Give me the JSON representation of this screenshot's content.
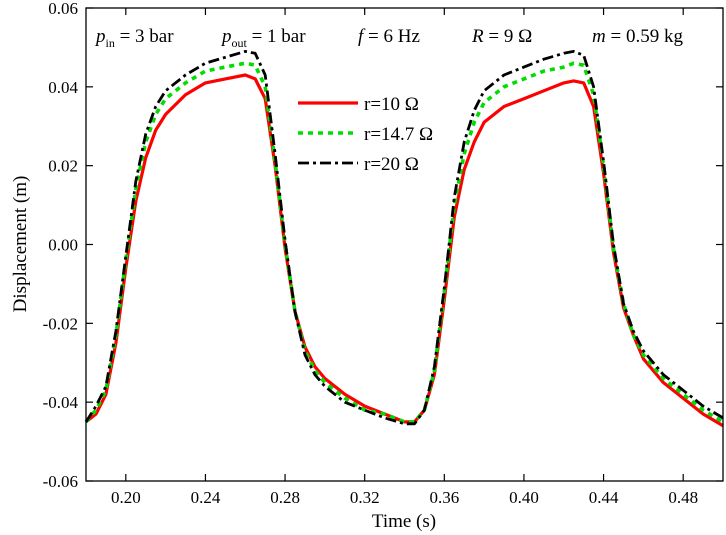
{
  "chart_data": {
    "type": "line",
    "xlabel": "Time (s)",
    "ylabel": "Displacement (m)",
    "xlim": [
      0.18,
      0.5
    ],
    "ylim": [
      -0.06,
      0.06
    ],
    "xticks": [
      0.2,
      0.24,
      0.28,
      0.32,
      0.36,
      0.4,
      0.44,
      0.48
    ],
    "yticks": [
      -0.06,
      -0.04,
      -0.02,
      0.0,
      0.02,
      0.04,
      0.06
    ],
    "xtick_labels": [
      "0.20",
      "0.24",
      "0.28",
      "0.32",
      "0.36",
      "0.40",
      "0.44",
      "0.48"
    ],
    "ytick_labels": [
      "-0.06",
      "-0.04",
      "-0.02",
      "0.00",
      "0.02",
      "0.04",
      "0.06"
    ],
    "grid": false,
    "legend_position": "upper-center",
    "annotations": [
      {
        "name": "p_in",
        "symbol": "p",
        "subscript": "in",
        "text": " = 3 bar"
      },
      {
        "name": "p_out",
        "symbol": "p",
        "subscript": "out",
        "text": " = 1 bar"
      },
      {
        "name": "frequency",
        "symbol": "f",
        "subscript": "",
        "text": " = 6 Hz"
      },
      {
        "name": "resistance",
        "symbol": "R",
        "subscript": "",
        "text": " = 9 Ω"
      },
      {
        "name": "mass",
        "symbol": "m",
        "subscript": "",
        "text": " = 0.59 kg"
      }
    ],
    "series": [
      {
        "name": "r=10 Ω",
        "color": "#ff0000",
        "style": "solid",
        "x": [
          0.18,
          0.185,
          0.19,
          0.195,
          0.2,
          0.205,
          0.21,
          0.215,
          0.22,
          0.23,
          0.24,
          0.25,
          0.26,
          0.265,
          0.27,
          0.275,
          0.28,
          0.285,
          0.29,
          0.295,
          0.3,
          0.31,
          0.32,
          0.33,
          0.34,
          0.345,
          0.35,
          0.355,
          0.36,
          0.365,
          0.37,
          0.375,
          0.38,
          0.39,
          0.4,
          0.41,
          0.42,
          0.425,
          0.43,
          0.435,
          0.44,
          0.445,
          0.45,
          0.455,
          0.46,
          0.47,
          0.48,
          0.49,
          0.5
        ],
        "y": [
          -0.045,
          -0.043,
          -0.038,
          -0.025,
          -0.006,
          0.011,
          0.022,
          0.029,
          0.033,
          0.038,
          0.041,
          0.042,
          0.043,
          0.042,
          0.037,
          0.02,
          -0.001,
          -0.017,
          -0.026,
          -0.031,
          -0.034,
          -0.038,
          -0.041,
          -0.043,
          -0.045,
          -0.045,
          -0.042,
          -0.033,
          -0.014,
          0.007,
          0.019,
          0.026,
          0.031,
          0.035,
          0.037,
          0.039,
          0.041,
          0.0415,
          0.041,
          0.035,
          0.018,
          -0.002,
          -0.016,
          -0.023,
          -0.029,
          -0.035,
          -0.039,
          -0.043,
          -0.046
        ]
      },
      {
        "name": "r=14.7 Ω",
        "color": "#00dd00",
        "style": "dotted",
        "x": [
          0.18,
          0.185,
          0.19,
          0.195,
          0.2,
          0.205,
          0.21,
          0.215,
          0.22,
          0.23,
          0.24,
          0.25,
          0.26,
          0.265,
          0.27,
          0.275,
          0.28,
          0.285,
          0.29,
          0.295,
          0.3,
          0.31,
          0.32,
          0.33,
          0.34,
          0.345,
          0.35,
          0.355,
          0.36,
          0.365,
          0.37,
          0.375,
          0.38,
          0.39,
          0.4,
          0.41,
          0.42,
          0.425,
          0.43,
          0.435,
          0.44,
          0.445,
          0.45,
          0.455,
          0.46,
          0.47,
          0.48,
          0.49,
          0.5
        ],
        "y": [
          -0.045,
          -0.042,
          -0.037,
          -0.023,
          -0.004,
          0.014,
          0.026,
          0.033,
          0.037,
          0.041,
          0.044,
          0.045,
          0.046,
          0.0455,
          0.04,
          0.021,
          0.0,
          -0.017,
          -0.027,
          -0.032,
          -0.035,
          -0.039,
          -0.042,
          -0.043,
          -0.045,
          -0.045,
          -0.042,
          -0.032,
          -0.012,
          0.01,
          0.023,
          0.031,
          0.036,
          0.04,
          0.042,
          0.044,
          0.045,
          0.046,
          0.0455,
          0.038,
          0.02,
          -0.001,
          -0.015,
          -0.023,
          -0.028,
          -0.034,
          -0.038,
          -0.042,
          -0.045
        ]
      },
      {
        "name": "r=20 Ω",
        "color": "#000000",
        "style": "dashdot",
        "x": [
          0.18,
          0.185,
          0.19,
          0.195,
          0.2,
          0.205,
          0.21,
          0.215,
          0.22,
          0.23,
          0.24,
          0.25,
          0.26,
          0.265,
          0.27,
          0.275,
          0.28,
          0.285,
          0.29,
          0.295,
          0.3,
          0.31,
          0.32,
          0.33,
          0.34,
          0.345,
          0.35,
          0.355,
          0.36,
          0.365,
          0.37,
          0.375,
          0.38,
          0.39,
          0.4,
          0.41,
          0.42,
          0.425,
          0.43,
          0.435,
          0.44,
          0.445,
          0.45,
          0.455,
          0.46,
          0.47,
          0.48,
          0.49,
          0.5
        ],
        "y": [
          -0.045,
          -0.041,
          -0.036,
          -0.022,
          -0.003,
          0.016,
          0.028,
          0.035,
          0.039,
          0.043,
          0.046,
          0.0475,
          0.049,
          0.0485,
          0.043,
          0.023,
          0.001,
          -0.017,
          -0.028,
          -0.033,
          -0.036,
          -0.04,
          -0.042,
          -0.044,
          -0.0455,
          -0.0455,
          -0.042,
          -0.031,
          -0.011,
          0.012,
          0.026,
          0.034,
          0.039,
          0.043,
          0.045,
          0.047,
          0.0485,
          0.049,
          0.048,
          0.04,
          0.021,
          0.0,
          -0.015,
          -0.022,
          -0.027,
          -0.033,
          -0.037,
          -0.041,
          -0.044
        ]
      }
    ]
  }
}
